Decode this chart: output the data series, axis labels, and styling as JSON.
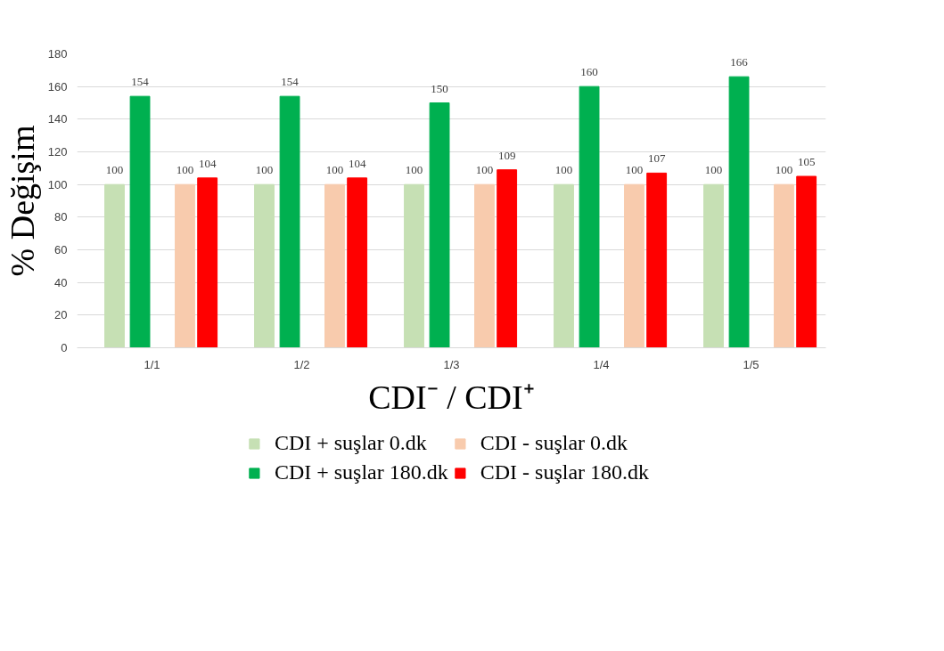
{
  "chart_data": {
    "type": "bar",
    "xlabel": "CDI⁻ / CDI⁺",
    "ylabel": "% Değişim",
    "categories": [
      "1/1",
      "1/2",
      "1/3",
      "1/4",
      "1/5"
    ],
    "series": [
      {
        "name": "CDI + suşlar 0.dk",
        "color": "#c6e0b4",
        "values": [
          100,
          100,
          100,
          100,
          100
        ]
      },
      {
        "name": "CDI + suşlar 180.dk",
        "color": "#00b050",
        "values": [
          154,
          154,
          150,
          160,
          166
        ]
      },
      {
        "name": "CDI - suşlar 0.dk",
        "color": "#f8cbad",
        "values": [
          100,
          100,
          100,
          100,
          100
        ]
      },
      {
        "name": "CDI - suşlar 180.dk",
        "color": "#ff0000",
        "values": [
          104,
          104,
          109,
          107,
          105
        ]
      }
    ],
    "ylim": [
      0,
      180
    ],
    "yticks": [
      0,
      20,
      40,
      60,
      80,
      100,
      120,
      140,
      160,
      180
    ],
    "grid": "y",
    "legend": "bottom",
    "data_labels": true
  }
}
